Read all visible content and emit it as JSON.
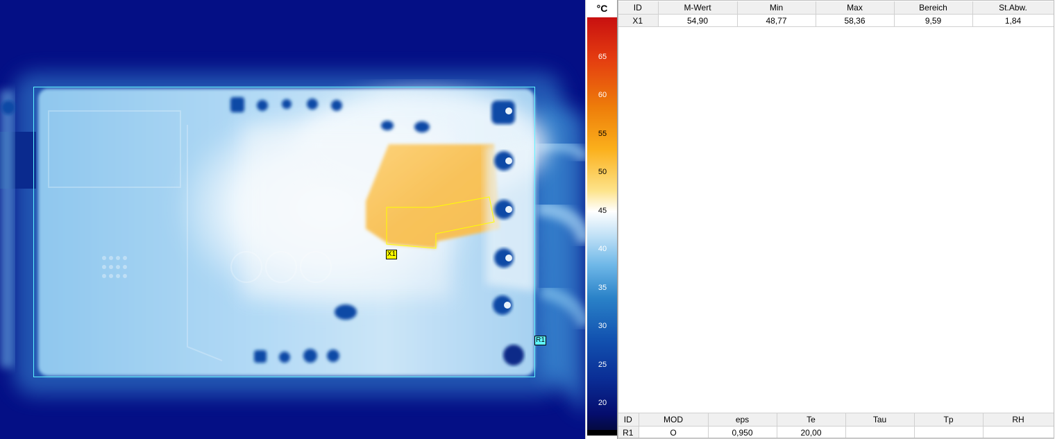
{
  "thermal": {
    "markers": {
      "x1": "X1",
      "r1": "R1"
    }
  },
  "scale": {
    "unit": "°C",
    "ticks": [
      "65",
      "60",
      "55",
      "50",
      "45",
      "40",
      "35",
      "30",
      "25",
      "20"
    ]
  },
  "measurements": {
    "headers": [
      "ID",
      "M-Wert",
      "Min",
      "Max",
      "Bereich",
      "St.Abw."
    ],
    "rows": [
      [
        "X1",
        "54,90",
        "48,77",
        "58,36",
        "9,59",
        "1,84"
      ]
    ]
  },
  "parameters": {
    "headers": [
      "ID",
      "MOD",
      "eps",
      "Te",
      "Tau",
      "Tp",
      "RH"
    ],
    "rows": [
      [
        "R1",
        "O",
        "0,950",
        "20,00",
        "",
        "",
        ""
      ]
    ]
  },
  "colors": {
    "roi_rect": "#5ff5ff",
    "roi_poly": "#ffff00",
    "background_cold": "#040f85",
    "hot_area": "#f5b733"
  }
}
